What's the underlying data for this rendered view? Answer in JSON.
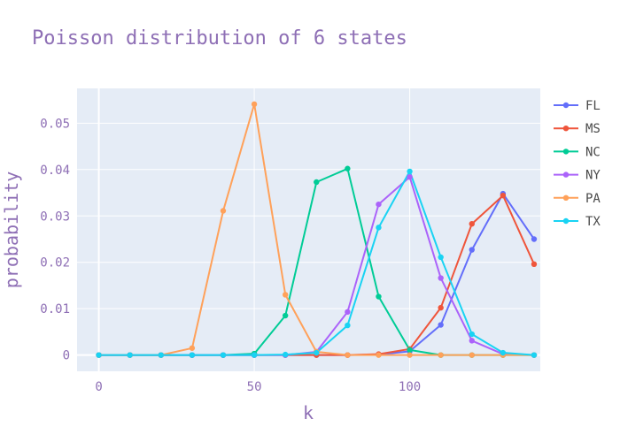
{
  "chart_data": {
    "type": "line",
    "title": "Poisson distribution of 6 states",
    "xlabel": "k",
    "ylabel": "probability",
    "xlim": [
      -7,
      142
    ],
    "ylim": [
      -0.0035,
      0.0575
    ],
    "xticks": [
      0,
      50,
      100
    ],
    "yticks": [
      0,
      0.01,
      0.02,
      0.03,
      0.04,
      0.05
    ],
    "ytick_labels": [
      "0",
      "0.01",
      "0.02",
      "0.03",
      "0.04",
      "0.05"
    ],
    "grid": true,
    "legend_position": "right",
    "x": [
      0,
      10,
      20,
      30,
      40,
      50,
      60,
      70,
      80,
      90,
      100,
      110,
      120,
      130,
      140
    ],
    "series": [
      {
        "name": "FL",
        "color": "#636efa",
        "values": [
          0,
          0,
          0,
          0,
          0,
          0,
          0,
          0,
          0,
          0.0001,
          0.0008,
          0.0065,
          0.0227,
          0.0348,
          0.025
        ]
      },
      {
        "name": "MS",
        "color": "#ef553b",
        "values": [
          0,
          0,
          0,
          0,
          0,
          0,
          0,
          0,
          0,
          0.0002,
          0.0013,
          0.0102,
          0.0283,
          0.0344,
          0.0196
        ]
      },
      {
        "name": "NC",
        "color": "#00cc96",
        "values": [
          0,
          0,
          0,
          0,
          0,
          0.0003,
          0.0085,
          0.0373,
          0.0402,
          0.0126,
          0.0011,
          0,
          0,
          0,
          0
        ]
      },
      {
        "name": "NY",
        "color": "#ab63fa",
        "values": [
          0,
          0,
          0,
          0,
          0,
          0,
          0,
          0.0007,
          0.0093,
          0.0325,
          0.0384,
          0.0166,
          0.0031,
          0.0002,
          0
        ]
      },
      {
        "name": "PA",
        "color": "#ffa15a",
        "values": [
          0,
          0,
          0,
          0.0015,
          0.0311,
          0.0541,
          0.013,
          0.0007,
          0,
          0,
          0,
          0,
          0,
          0,
          0
        ]
      },
      {
        "name": "TX",
        "color": "#19d3f3",
        "values": [
          0,
          0,
          0,
          0,
          0,
          0,
          0.0001,
          0.0005,
          0.0064,
          0.0275,
          0.0396,
          0.0211,
          0.0045,
          0.0005,
          0
        ]
      }
    ]
  }
}
